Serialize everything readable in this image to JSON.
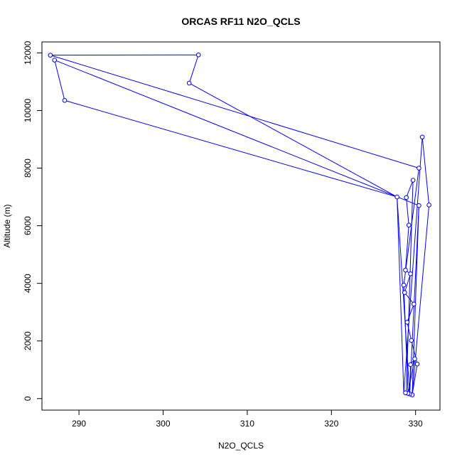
{
  "chart_data": {
    "type": "line",
    "title": "ORCAS RF11 N2O_QCLS",
    "xlabel": "N2O_QCLS",
    "ylabel": "Altitude (m)",
    "xlim": [
      285.6,
      332.9
    ],
    "ylim": [
      -400,
      12380
    ],
    "x_ticks": [
      290,
      300,
      310,
      320,
      330
    ],
    "y_ticks": [
      0,
      2000,
      4000,
      6000,
      8000,
      10000,
      12000
    ],
    "grid": false,
    "legend": "none",
    "colors": {
      "series": "#0000ff",
      "axis": "#000000"
    },
    "series": [
      {
        "marker": "open-circle",
        "points": [
          [
            329.6,
            130
          ],
          [
            329.3,
            160
          ],
          [
            329.1,
            180
          ],
          [
            328.8,
            200
          ],
          [
            329.4,
            1180
          ],
          [
            330.2,
            1200
          ],
          [
            329.9,
            1380
          ],
          [
            329.5,
            2020
          ],
          [
            329.0,
            2650
          ],
          [
            329.8,
            3280
          ],
          [
            328.7,
            3680
          ],
          [
            328.6,
            3940
          ],
          [
            329.4,
            4330
          ],
          [
            328.8,
            4460
          ],
          [
            329.2,
            6020
          ],
          [
            328.9,
            6980
          ],
          [
            327.8,
            7000
          ],
          [
            329.7,
            7580
          ],
          [
            330.4,
            8000
          ],
          [
            330.8,
            9080
          ],
          [
            330.4,
            6700
          ],
          [
            331.6,
            6720
          ],
          [
            286.6,
            11920
          ],
          [
            304.2,
            11930
          ],
          [
            303.1,
            10950
          ],
          [
            287.1,
            11750
          ],
          [
            288.3,
            10350
          ]
        ],
        "path": [
          [
            329.6,
            130
          ],
          [
            330.2,
            1200
          ],
          [
            329.5,
            2020
          ],
          [
            329.0,
            2650
          ],
          [
            329.8,
            3280
          ],
          [
            328.7,
            3680
          ],
          [
            329.4,
            4330
          ],
          [
            328.8,
            4460
          ],
          [
            329.2,
            6020
          ],
          [
            328.9,
            6980
          ],
          [
            329.7,
            7580
          ],
          [
            328.9,
            200
          ],
          [
            329.3,
            160
          ],
          [
            329.4,
            1180
          ],
          [
            329.9,
            1380
          ],
          [
            329.1,
            180
          ],
          [
            328.6,
            3940
          ],
          [
            330.4,
            8000
          ],
          [
            286.6,
            11920
          ],
          [
            304.2,
            11930
          ],
          [
            303.1,
            10950
          ],
          [
            327.8,
            7000
          ],
          [
            329.3,
            160
          ],
          [
            330.4,
            6700
          ],
          [
            329.6,
            130
          ],
          [
            331.6,
            6720
          ],
          [
            330.8,
            9080
          ],
          [
            328.6,
            200
          ],
          [
            327.8,
            7000
          ],
          [
            288.3,
            10350
          ],
          [
            287.1,
            11750
          ],
          [
            330.4,
            6700
          ]
        ]
      }
    ]
  }
}
